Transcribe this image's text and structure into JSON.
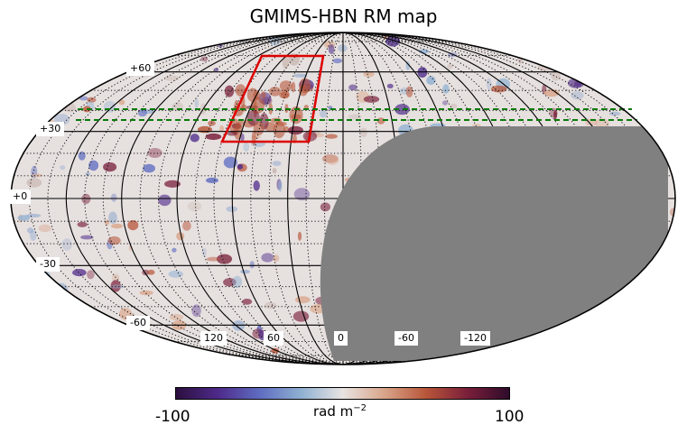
{
  "title": "GMIMS-HBN RM map",
  "latitude_labels": [
    "+60",
    "+30",
    "+0",
    "-30",
    "-60"
  ],
  "longitude_labels": [
    "120",
    "60",
    "0",
    "-60",
    "-120"
  ],
  "colorbar": {
    "min_label": "-100",
    "max_label": "100",
    "unit_text": "rad m",
    "unit_exponent": "−2",
    "colormap": [
      "#2b0f3e",
      "#4e2a8a",
      "#5e6cc0",
      "#8fb0d2",
      "#e8e4e2",
      "#d9a58a",
      "#b8563a",
      "#7a1f3a",
      "#2f0b2b"
    ]
  },
  "colors": {
    "masked_region": "#808080",
    "survey_box": "#dd0000",
    "dashed_lines": "#0a7a0a",
    "background_map": "#e6e0df"
  }
}
